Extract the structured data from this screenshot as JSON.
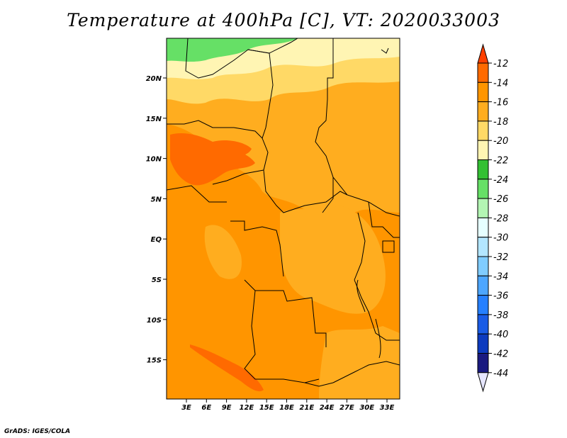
{
  "title": "Temperature at 400hPa [C], VT: 2020033003",
  "credit": "GrADS: IGES/COLA",
  "map": {
    "lat_ticks": [
      "20N",
      "15N",
      "10N",
      "5N",
      "EQ",
      "5S",
      "10S",
      "15S"
    ],
    "lon_ticks": [
      "3E",
      "6E",
      "9E",
      "12E",
      "15E",
      "18E",
      "21E",
      "24E",
      "27E",
      "30E",
      "33E"
    ]
  },
  "colorbar": {
    "labels": [
      "-12",
      "-14",
      "-16",
      "-18",
      "-20",
      "-22",
      "-24",
      "-26",
      "-28",
      "-30",
      "-32",
      "-34",
      "-36",
      "-38",
      "-40",
      "-42",
      "-44"
    ],
    "colors": [
      "#ff4000",
      "#ff6a00",
      "#ff9500",
      "#ffad1f",
      "#ffd966",
      "#fff5b3",
      "#33c033",
      "#66e066",
      "#b3f5b3",
      "#e6ffff",
      "#b3e6ff",
      "#80ccff",
      "#4da6ff",
      "#2680ff",
      "#1a5ce6",
      "#0d3bbf",
      "#1a1a80",
      "#e6e6ff"
    ]
  }
}
